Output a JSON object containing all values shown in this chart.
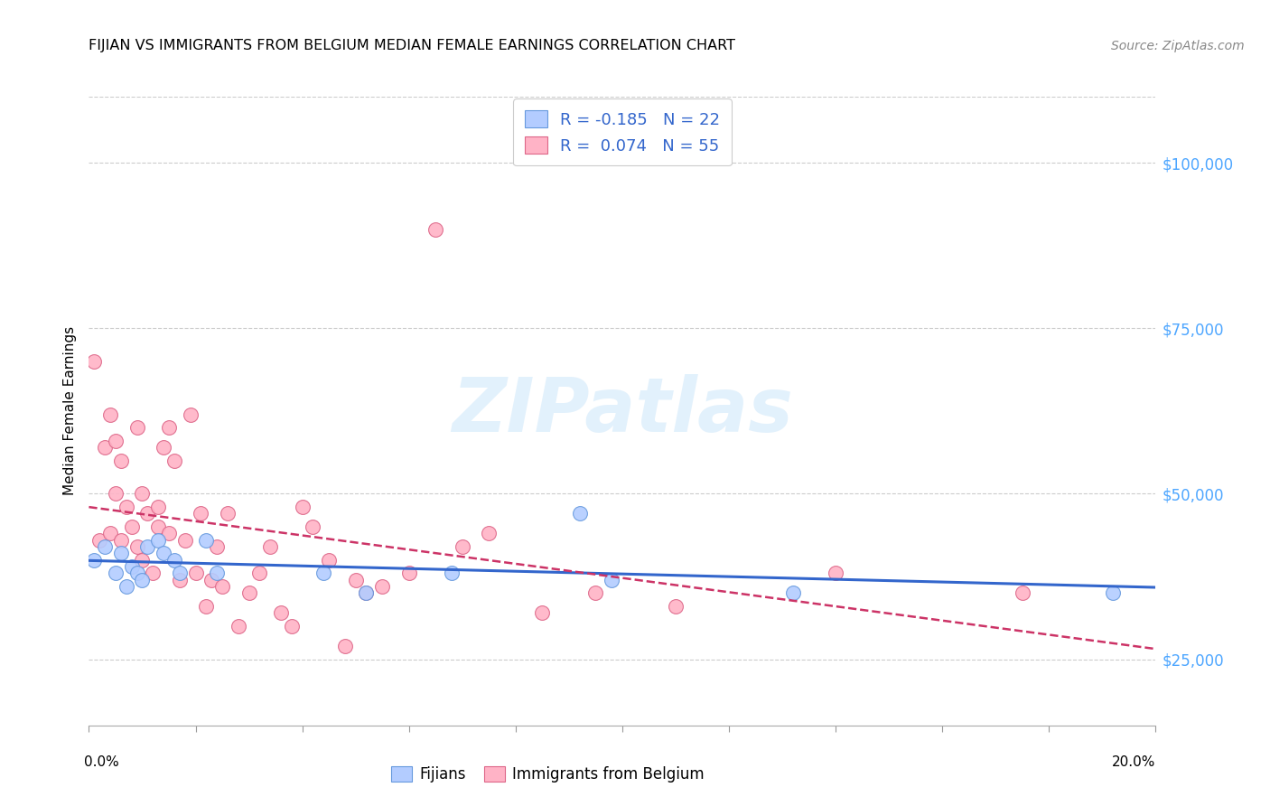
{
  "title": "FIJIAN VS IMMIGRANTS FROM BELGIUM MEDIAN FEMALE EARNINGS CORRELATION CHART",
  "source": "Source: ZipAtlas.com",
  "ylabel": "Median Female Earnings",
  "xlim": [
    0.0,
    0.2
  ],
  "ylim": [
    15000,
    110000
  ],
  "yticks": [
    25000,
    50000,
    75000,
    100000
  ],
  "ytick_labels": [
    "$25,000",
    "$50,000",
    "$75,000",
    "$100,000"
  ],
  "ytick_color": "#4da6ff",
  "xticks": [
    0.0,
    0.02,
    0.04,
    0.06,
    0.08,
    0.1,
    0.12,
    0.14,
    0.16,
    0.18,
    0.2
  ],
  "fijian_color": "#b3ccff",
  "fijian_edge": "#6699dd",
  "belgium_color": "#ffb3c6",
  "belgium_edge": "#dd6688",
  "trend_fijian_color": "#3366cc",
  "trend_belgium_color": "#cc3366",
  "trend_belgium_linestyle": "--",
  "trend_fijian_linestyle": "-",
  "R_fijian": -0.185,
  "N_fijian": 22,
  "R_belgium": 0.074,
  "N_belgium": 55,
  "legend_label_fijian": "Fijians",
  "legend_label_belgium": "Immigrants from Belgium",
  "watermark": "ZIPatlas",
  "grid_color": "#cccccc",
  "fijian_x": [
    0.001,
    0.003,
    0.005,
    0.006,
    0.007,
    0.008,
    0.009,
    0.01,
    0.011,
    0.013,
    0.014,
    0.016,
    0.017,
    0.022,
    0.024,
    0.044,
    0.052,
    0.068,
    0.092,
    0.098,
    0.132,
    0.192
  ],
  "fijian_y": [
    40000,
    42000,
    38000,
    41000,
    36000,
    39000,
    38000,
    37000,
    42000,
    43000,
    41000,
    40000,
    38000,
    43000,
    38000,
    38000,
    35000,
    38000,
    47000,
    37000,
    35000,
    35000
  ],
  "belgium_x": [
    0.001,
    0.002,
    0.003,
    0.004,
    0.004,
    0.005,
    0.005,
    0.006,
    0.006,
    0.007,
    0.008,
    0.009,
    0.009,
    0.01,
    0.01,
    0.011,
    0.012,
    0.013,
    0.013,
    0.014,
    0.015,
    0.015,
    0.016,
    0.017,
    0.018,
    0.019,
    0.02,
    0.021,
    0.022,
    0.023,
    0.024,
    0.025,
    0.026,
    0.028,
    0.03,
    0.032,
    0.034,
    0.036,
    0.038,
    0.04,
    0.042,
    0.045,
    0.048,
    0.05,
    0.052,
    0.055,
    0.06,
    0.065,
    0.07,
    0.075,
    0.085,
    0.095,
    0.11,
    0.14,
    0.175
  ],
  "belgium_y": [
    70000,
    43000,
    57000,
    44000,
    62000,
    58000,
    50000,
    55000,
    43000,
    48000,
    45000,
    42000,
    60000,
    50000,
    40000,
    47000,
    38000,
    45000,
    48000,
    57000,
    60000,
    44000,
    55000,
    37000,
    43000,
    62000,
    38000,
    47000,
    33000,
    37000,
    42000,
    36000,
    47000,
    30000,
    35000,
    38000,
    42000,
    32000,
    30000,
    48000,
    45000,
    40000,
    27000,
    37000,
    35000,
    36000,
    38000,
    90000,
    42000,
    44000,
    32000,
    35000,
    33000,
    38000,
    35000
  ]
}
